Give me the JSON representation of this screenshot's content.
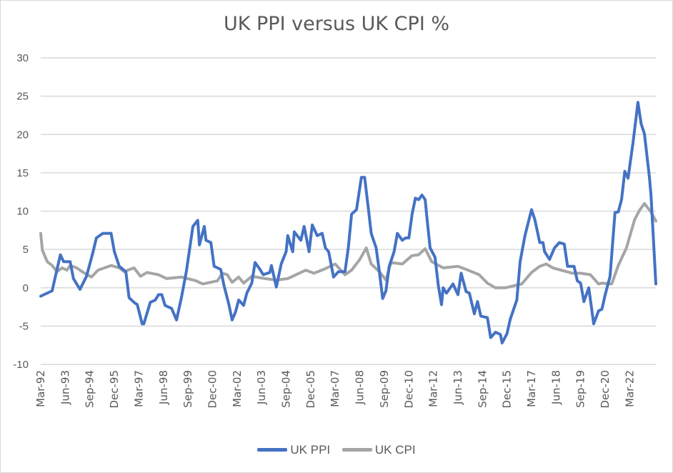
{
  "chart_data": {
    "type": "line",
    "title": "UK PPI versus UK CPI %",
    "xlabel": "",
    "ylabel": "",
    "x_unit": "months since Mar-92",
    "ylim": [
      -10,
      30
    ],
    "yticks": [
      30,
      25,
      20,
      15,
      10,
      5,
      0,
      -5,
      -10
    ],
    "grid": true,
    "legend_position": "bottom",
    "x_tick_labels": [
      "Mar-92",
      "Jun-93",
      "Sep-94",
      "Dec-95",
      "Mar-97",
      "Jun-98",
      "Sep-99",
      "Dec-00",
      "Mar-02",
      "Jun-03",
      "Sep-04",
      "Dec-05",
      "Mar-07",
      "Jun-08",
      "Sep-09",
      "Dec-10",
      "Mar-12",
      "Jun-13",
      "Sep-14",
      "Dec-15",
      "Mar-17",
      "Jun-18",
      "Sep-19",
      "Dec-20",
      "Mar-22"
    ],
    "x_tick_step_months": 15,
    "xlim": [
      0,
      376
    ],
    "series": [
      {
        "name": "UK PPI",
        "color": "#4472C4",
        "points": [
          [
            0,
            -1.1
          ],
          [
            7,
            -0.4
          ],
          [
            9,
            1.5
          ],
          [
            12,
            4.3
          ],
          [
            14,
            3.4
          ],
          [
            18,
            3.4
          ],
          [
            20,
            1.2
          ],
          [
            24,
            -0.2
          ],
          [
            28,
            1.5
          ],
          [
            32,
            4.7
          ],
          [
            34,
            6.5
          ],
          [
            38,
            7.1
          ],
          [
            43,
            7.1
          ],
          [
            45,
            4.7
          ],
          [
            48,
            2.8
          ],
          [
            52,
            2.1
          ],
          [
            54,
            -1.3
          ],
          [
            57,
            -1.9
          ],
          [
            59,
            -2.2
          ],
          [
            62,
            -4.7
          ],
          [
            63,
            -4.7
          ],
          [
            67,
            -1.9
          ],
          [
            70,
            -1.6
          ],
          [
            72,
            -0.9
          ],
          [
            74,
            -0.9
          ],
          [
            76,
            -2.3
          ],
          [
            80,
            -2.7
          ],
          [
            83,
            -4.2
          ],
          [
            86,
            -1.3
          ],
          [
            89,
            2.1
          ],
          [
            93,
            8.0
          ],
          [
            96,
            8.8
          ],
          [
            97,
            5.6
          ],
          [
            100,
            8.0
          ],
          [
            101,
            6.2
          ],
          [
            104,
            5.9
          ],
          [
            106,
            2.8
          ],
          [
            110,
            2.4
          ],
          [
            112,
            0.3
          ],
          [
            115,
            -2.2
          ],
          [
            117,
            -4.2
          ],
          [
            119,
            -3.2
          ],
          [
            121,
            -1.6
          ],
          [
            124,
            -2.3
          ],
          [
            126,
            -0.7
          ],
          [
            129,
            0.6
          ],
          [
            131,
            3.3
          ],
          [
            134,
            2.4
          ],
          [
            136,
            1.7
          ],
          [
            140,
            2.0
          ],
          [
            141,
            2.9
          ],
          [
            144,
            0.1
          ],
          [
            147,
            3.1
          ],
          [
            150,
            4.7
          ],
          [
            151,
            6.8
          ],
          [
            154,
            4.7
          ],
          [
            155,
            7.3
          ],
          [
            159,
            6.2
          ],
          [
            161,
            8.0
          ],
          [
            164,
            4.7
          ],
          [
            166,
            8.2
          ],
          [
            169,
            6.8
          ],
          [
            172,
            7.1
          ],
          [
            174,
            5.2
          ],
          [
            176,
            4.7
          ],
          [
            179,
            1.4
          ],
          [
            182,
            2.1
          ],
          [
            186,
            2.1
          ],
          [
            188,
            5.2
          ],
          [
            190,
            9.6
          ],
          [
            193,
            10.2
          ],
          [
            196,
            14.4
          ],
          [
            198,
            14.4
          ],
          [
            200,
            10.8
          ],
          [
            202,
            7.1
          ],
          [
            205,
            5.2
          ],
          [
            207,
            2.1
          ],
          [
            209,
            -1.4
          ],
          [
            211,
            -0.4
          ],
          [
            213,
            2.8
          ],
          [
            216,
            4.7
          ],
          [
            218,
            7.1
          ],
          [
            221,
            6.2
          ],
          [
            223,
            6.5
          ],
          [
            225,
            6.5
          ],
          [
            227,
            9.6
          ],
          [
            229,
            11.7
          ],
          [
            231,
            11.5
          ],
          [
            233,
            12.1
          ],
          [
            235,
            11.5
          ],
          [
            236,
            9.3
          ],
          [
            238,
            5.2
          ],
          [
            241,
            4.0
          ],
          [
            243,
            0.3
          ],
          [
            245,
            -2.2
          ],
          [
            246,
            0
          ],
          [
            248,
            -0.7
          ],
          [
            252,
            0.5
          ],
          [
            255,
            -0.9
          ],
          [
            257,
            1.9
          ],
          [
            260,
            -0.5
          ],
          [
            262,
            -0.7
          ],
          [
            265,
            -3.4
          ],
          [
            267,
            -1.8
          ],
          [
            269,
            -3.7
          ],
          [
            273,
            -3.9
          ],
          [
            275,
            -6.5
          ],
          [
            278,
            -5.8
          ],
          [
            281,
            -6.1
          ],
          [
            282,
            -7.2
          ],
          [
            285,
            -6.0
          ],
          [
            287,
            -4.1
          ],
          [
            291,
            -1.6
          ],
          [
            293,
            3.4
          ],
          [
            296,
            6.8
          ],
          [
            300,
            10.2
          ],
          [
            302,
            8.9
          ],
          [
            305,
            5.9
          ],
          [
            307,
            5.9
          ],
          [
            308,
            4.7
          ],
          [
            311,
            3.7
          ],
          [
            314,
            5.2
          ],
          [
            317,
            5.9
          ],
          [
            320,
            5.7
          ],
          [
            322,
            2.8
          ],
          [
            326,
            2.8
          ],
          [
            328,
            0.9
          ],
          [
            330,
            0.6
          ],
          [
            332,
            -1.8
          ],
          [
            335,
            0
          ],
          [
            338,
            -4.7
          ],
          [
            341,
            -3.0
          ],
          [
            343,
            -2.8
          ],
          [
            345,
            -0.9
          ],
          [
            348,
            1.5
          ],
          [
            351,
            9.8
          ],
          [
            353,
            9.9
          ],
          [
            355,
            11.5
          ],
          [
            357,
            15.2
          ],
          [
            359,
            14.3
          ],
          [
            362,
            18.9
          ],
          [
            365,
            24.2
          ],
          [
            367,
            21.4
          ],
          [
            369,
            20.1
          ],
          [
            372,
            14.5
          ],
          [
            373,
            12.1
          ],
          [
            376,
            0.5
          ]
        ]
      },
      {
        "name": "UK CPI",
        "color": "#A5A5A5",
        "points": [
          [
            0,
            7.1
          ],
          [
            1,
            4.9
          ],
          [
            4,
            3.4
          ],
          [
            7,
            2.9
          ],
          [
            10,
            2.1
          ],
          [
            13,
            2.6
          ],
          [
            16,
            2.3
          ],
          [
            18,
            2.9
          ],
          [
            22,
            2.6
          ],
          [
            26,
            2.0
          ],
          [
            31,
            1.4
          ],
          [
            35,
            2.3
          ],
          [
            43,
            2.9
          ],
          [
            48,
            2.6
          ],
          [
            51,
            2.1
          ],
          [
            57,
            2.6
          ],
          [
            61,
            1.5
          ],
          [
            65,
            2.0
          ],
          [
            72,
            1.7
          ],
          [
            77,
            1.2
          ],
          [
            86,
            1.4
          ],
          [
            95,
            0.9
          ],
          [
            99,
            0.5
          ],
          [
            108,
            0.9
          ],
          [
            111,
            1.9
          ],
          [
            114,
            1.7
          ],
          [
            117,
            0.7
          ],
          [
            121,
            1.4
          ],
          [
            124,
            0.6
          ],
          [
            129,
            1.5
          ],
          [
            137,
            1.2
          ],
          [
            144,
            1.0
          ],
          [
            151,
            1.2
          ],
          [
            162,
            2.3
          ],
          [
            167,
            1.9
          ],
          [
            173,
            2.4
          ],
          [
            180,
            3.1
          ],
          [
            186,
            1.7
          ],
          [
            190,
            2.3
          ],
          [
            195,
            3.7
          ],
          [
            199,
            5.2
          ],
          [
            202,
            3.1
          ],
          [
            207,
            2.1
          ],
          [
            211,
            1.0
          ],
          [
            214,
            3.3
          ],
          [
            221,
            3.1
          ],
          [
            227,
            4.2
          ],
          [
            231,
            4.3
          ],
          [
            235,
            5.1
          ],
          [
            239,
            3.4
          ],
          [
            246,
            2.6
          ],
          [
            255,
            2.8
          ],
          [
            260,
            2.4
          ],
          [
            268,
            1.7
          ],
          [
            273,
            0.6
          ],
          [
            278,
            0
          ],
          [
            284,
            0
          ],
          [
            290,
            0.3
          ],
          [
            294,
            0.5
          ],
          [
            300,
            2.0
          ],
          [
            305,
            2.8
          ],
          [
            309,
            3.1
          ],
          [
            313,
            2.6
          ],
          [
            318,
            2.3
          ],
          [
            325,
            1.9
          ],
          [
            330,
            1.9
          ],
          [
            336,
            1.7
          ],
          [
            341,
            0.5
          ],
          [
            343,
            0.6
          ],
          [
            349,
            0.5
          ],
          [
            353,
            2.9
          ],
          [
            358,
            5.2
          ],
          [
            363,
            8.9
          ],
          [
            366,
            10.1
          ],
          [
            369,
            11.0
          ],
          [
            373,
            9.9
          ],
          [
            376,
            8.7
          ]
        ]
      }
    ]
  }
}
